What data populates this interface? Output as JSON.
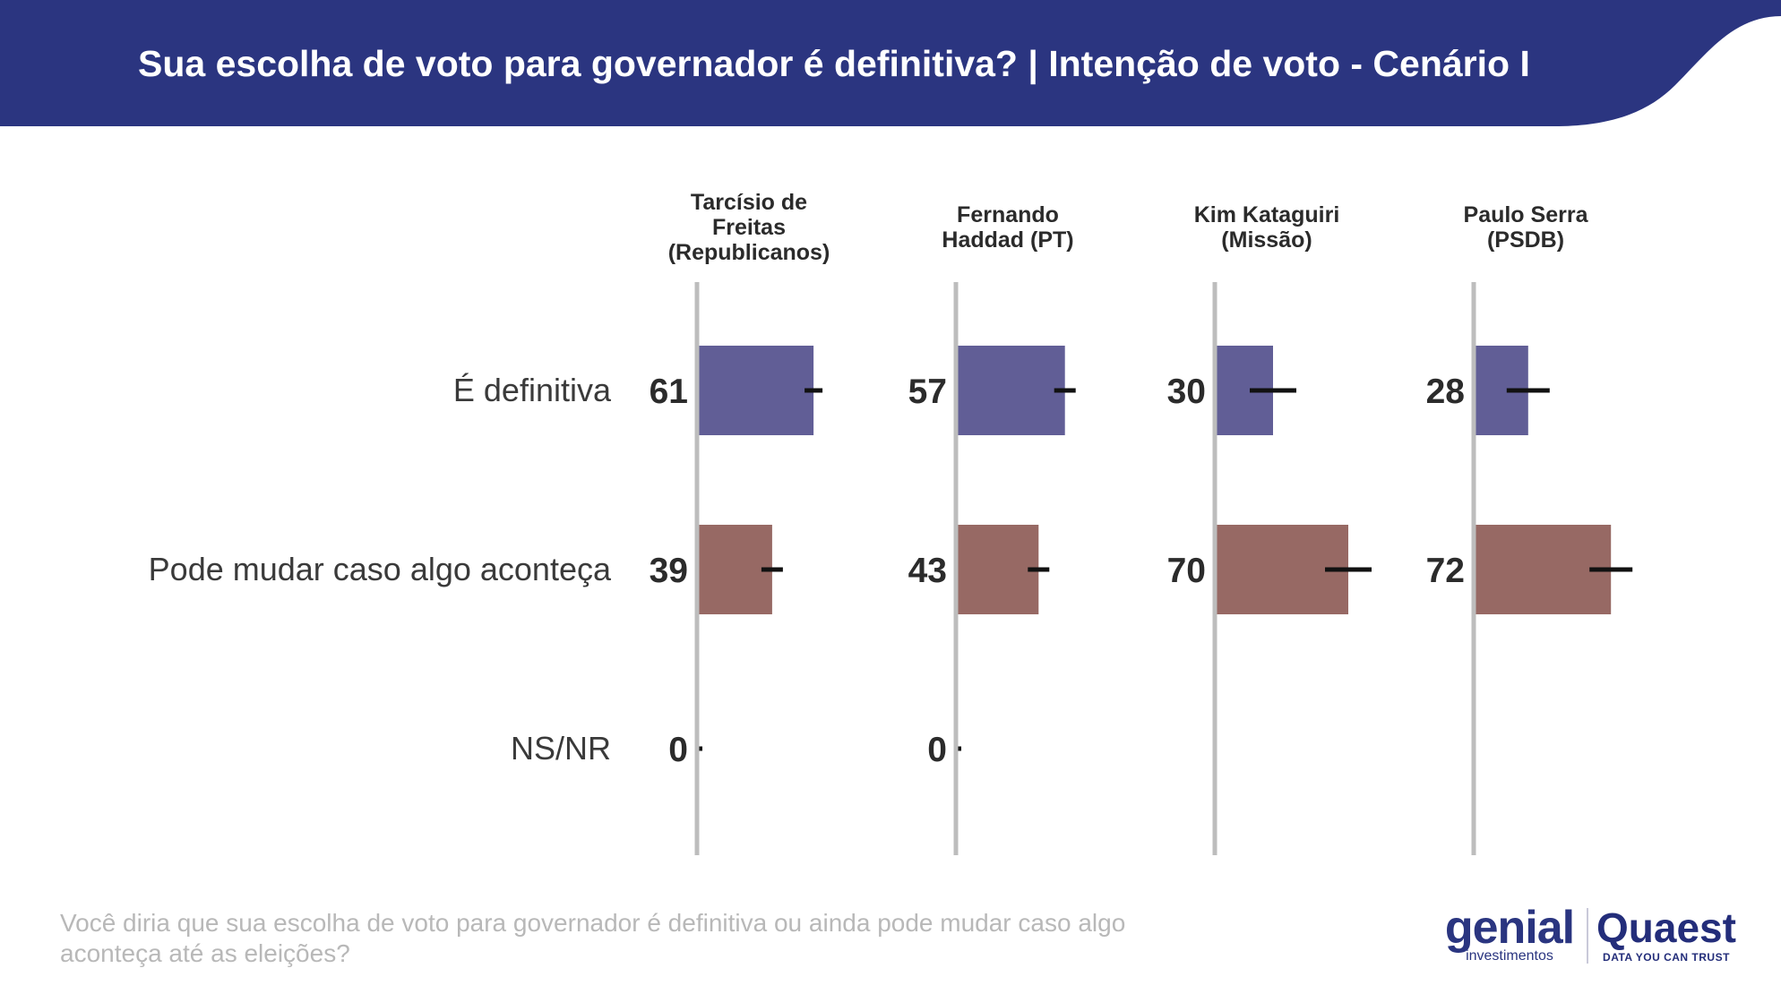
{
  "header": {
    "title": "Sua escolha de voto para governador é definitiva? | Intenção de voto - Cenário I",
    "bg_color": "#2b3580"
  },
  "chart_data": {
    "type": "bar",
    "title": "Sua escolha de voto para governador é definitiva? | Intenção de voto - Cenário I",
    "categories": [
      "É definitiva",
      "Pode mudar caso algo aconteça",
      "NS/NR"
    ],
    "panels": [
      {
        "name": "Tarcísio de\nFreitas\n(Republicanos)",
        "values": [
          61,
          39,
          0
        ]
      },
      {
        "name": "Fernando\nHaddad (PT)",
        "values": [
          57,
          43,
          0
        ]
      },
      {
        "name": "Kim Kataguiri\n(Missão)",
        "values": [
          30,
          70,
          null
        ]
      },
      {
        "name": "Paulo Serra\n(PSDB)",
        "values": [
          28,
          72,
          null
        ]
      }
    ],
    "error_bars": "horizontal black error bars at each bar end",
    "xlim": [
      0,
      100
    ],
    "colors": {
      "É definitiva": "#615e96",
      "Pode mudar caso algo aconteça": "#976964",
      "axis": "#bdbdbd"
    }
  },
  "footer": {
    "question": "Você diria que sua escolha de voto para governador é definitiva ou ainda pode mudar caso algo aconteça até as eleições?",
    "logo_genial": "genial",
    "logo_genial_sub": "investimentos",
    "logo_quaest": "Quaest",
    "logo_quaest_sub": "DATA YOU CAN TRUST"
  }
}
